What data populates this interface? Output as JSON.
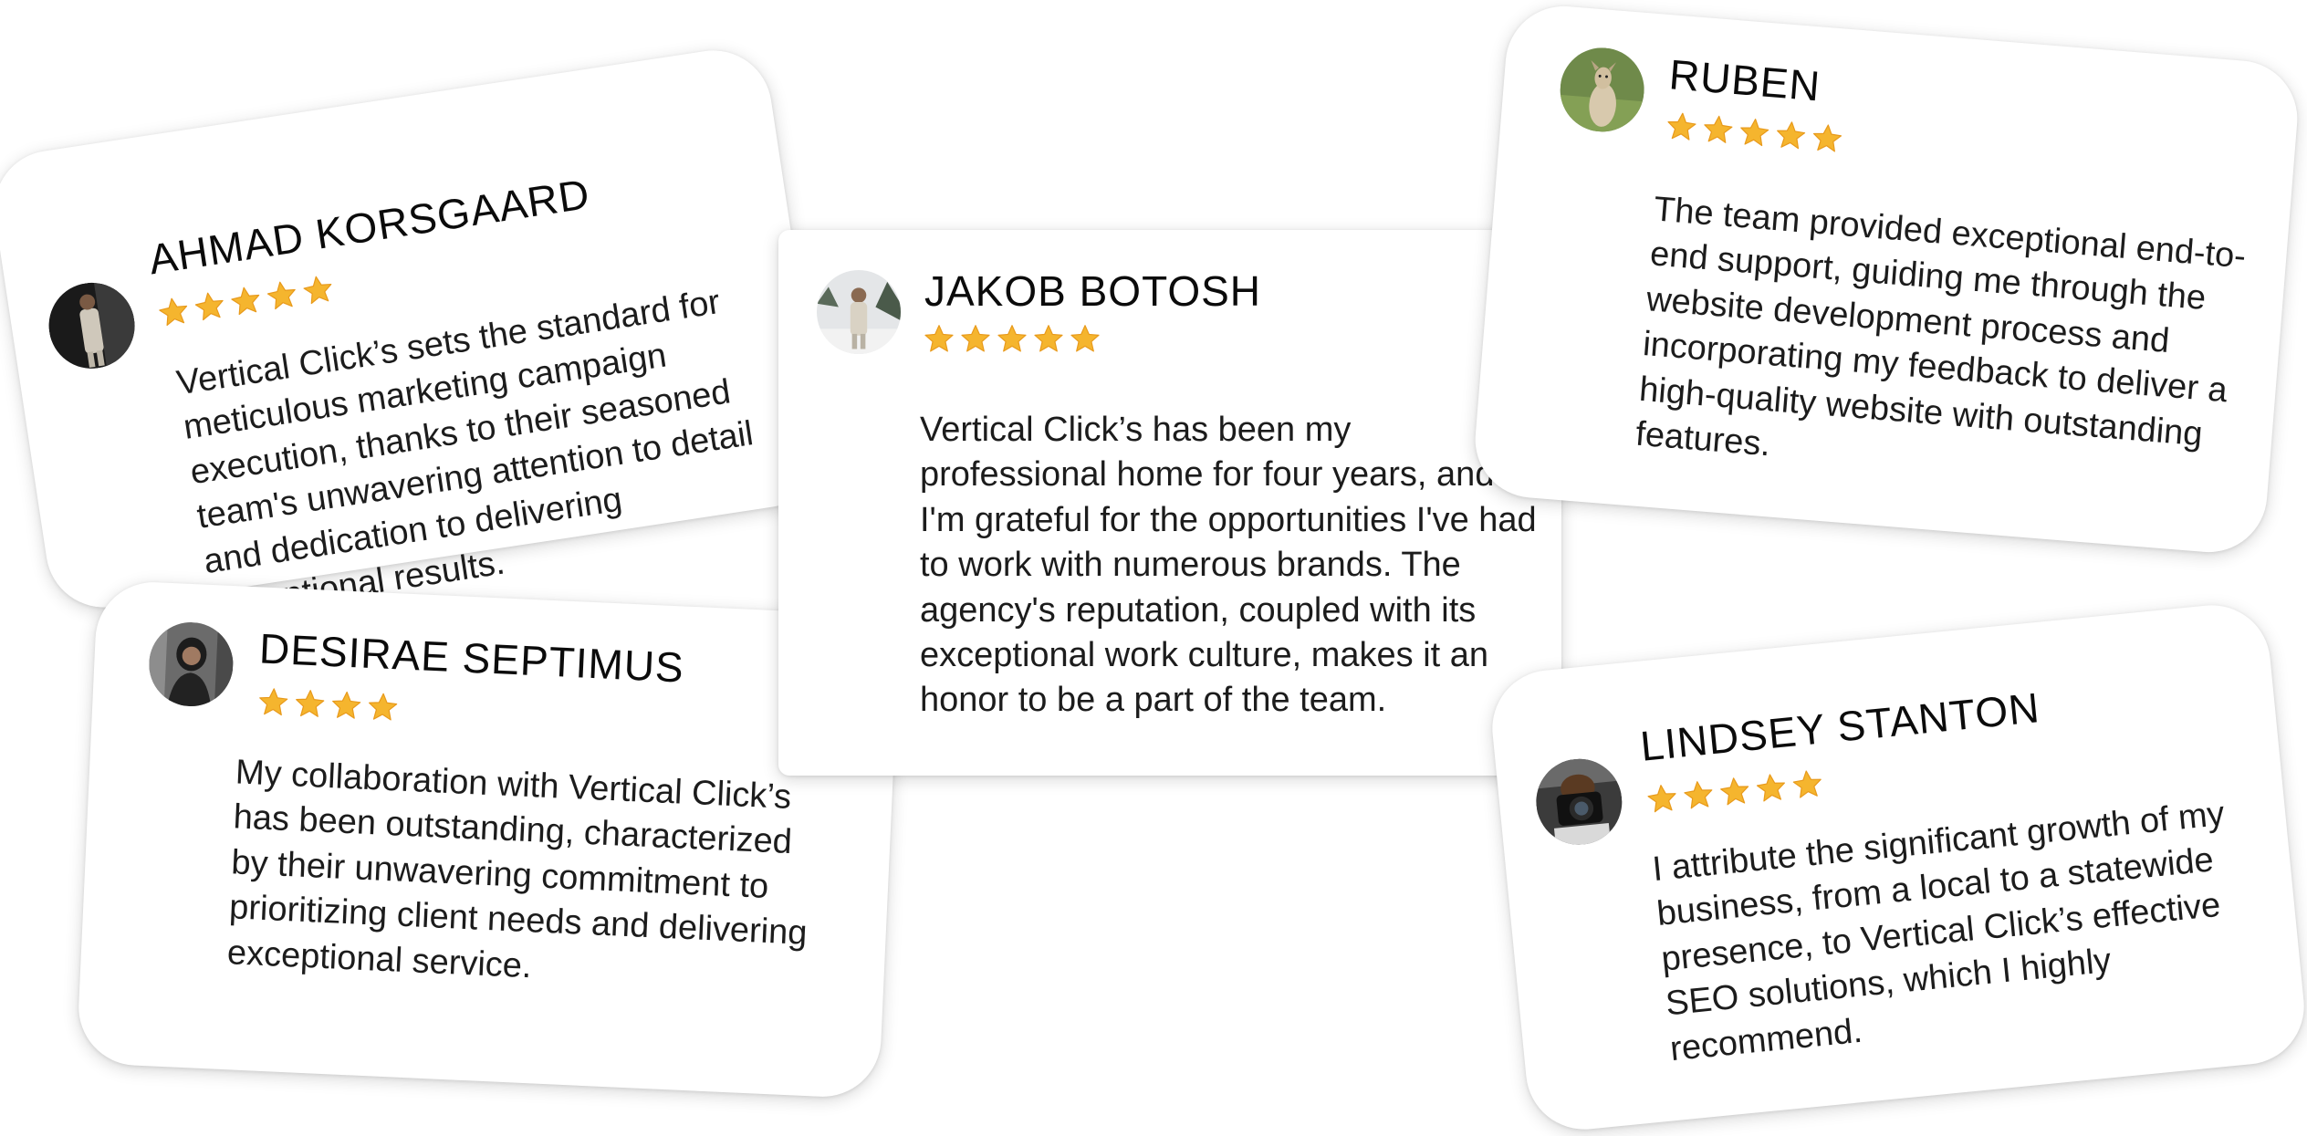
{
  "colors": {
    "star": "#f5b52e",
    "star_shade": "#e89a1c",
    "text": "#1c1c1c",
    "name": "#0b0b0b",
    "card_bg": "#ffffff"
  },
  "testimonials": [
    {
      "id": "ahmad",
      "name": "AHMAD KORSGAARD",
      "stars": 5,
      "avatar_icon": "person-portrait-icon",
      "quote": "Vertical Click’s sets the standard for meticulous marketing campaign execution, thanks to their seasoned team's unwavering attention to detail and dedication to delivering exceptional results."
    },
    {
      "id": "desirae",
      "name": "DESIRAE SEPTIMUS",
      "stars": 4,
      "avatar_icon": "person-portrait-icon",
      "quote": "My collaboration with Vertical Click’s has been outstanding, characterized by their unwavering commitment to prioritizing client needs and delivering exceptional service."
    },
    {
      "id": "jakob",
      "name": "JAKOB BOTOSH",
      "stars": 5,
      "avatar_icon": "person-portrait-icon",
      "quote": "Vertical Click’s has been my professional home for four years, and I'm grateful for the opportunities I've had to work with numerous brands. The agency's reputation, coupled with its exceptional work culture, makes it an honor to be a part of the team."
    },
    {
      "id": "ruben",
      "name": "RUBEN",
      "stars": 5,
      "avatar_icon": "dog-portrait-icon",
      "quote": "The team provided exceptional end-to-end support, guiding me through the website development process and incorporating my feedback to deliver a high-quality website with outstanding features."
    },
    {
      "id": "lindsey",
      "name": "LINDSEY STANTON",
      "stars": 5,
      "avatar_icon": "camera-portrait-icon",
      "quote": "I attribute the significant growth of my business, from a local to a statewide presence, to Vertical Click’s effective SEO solutions, which I highly recommend."
    }
  ]
}
